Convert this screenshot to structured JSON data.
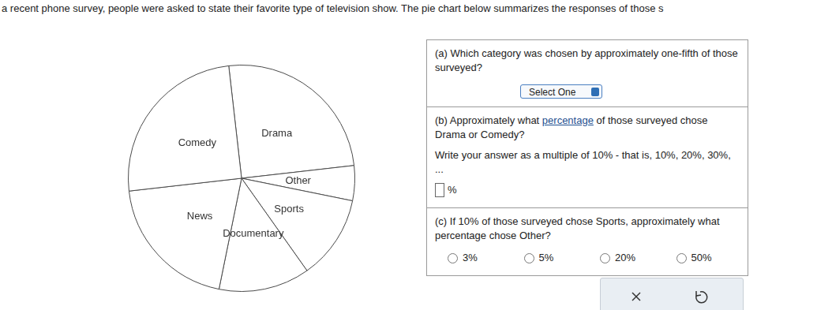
{
  "intro": "a recent phone survey, people were asked to state their favorite type of television show. The pie chart below summarizes the responses of those s",
  "chart_data": {
    "type": "pie",
    "categories": [
      "Drama",
      "Other",
      "Sports",
      "Documentary",
      "News",
      "Comedy"
    ],
    "values": [
      25,
      5,
      12,
      13,
      20,
      25
    ],
    "color": "#ffffff"
  },
  "questions": [
    {
      "label": "(a)",
      "text": "Which category was chosen by approximately one-fifth of those surveyed?",
      "select": "Select One"
    },
    {
      "label": "(b)",
      "text_before": "Approximately what",
      "link": "percentage",
      "text_after": "of those surveyed chose Drama or Comedy?",
      "instruction": "Write your answer as a multiple of 10% - that is, 10%, 20%, 30%, ...",
      "unit": "%"
    },
    {
      "label": "(c)",
      "text": "If 10% of those surveyed chose Sports, approximately what percentage chose Other?",
      "options": [
        "3%",
        "5%",
        "20%",
        "50%"
      ]
    }
  ]
}
